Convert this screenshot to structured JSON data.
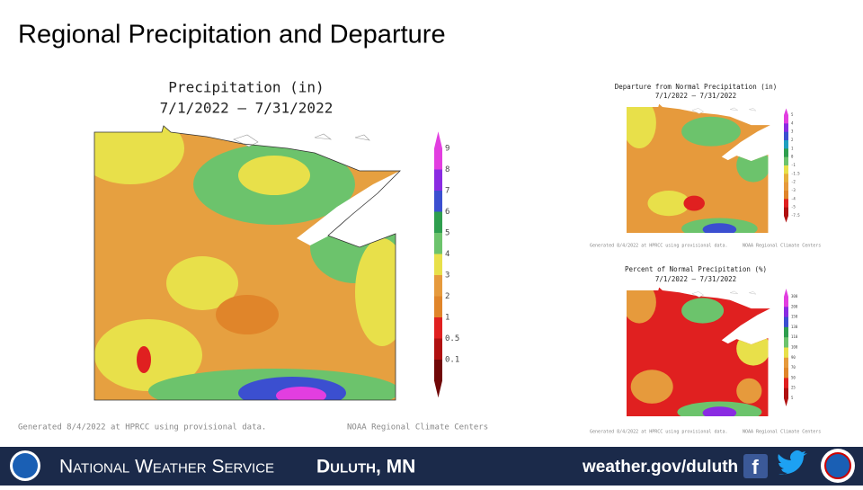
{
  "title": "Regional Precipitation and Departure",
  "main_map": {
    "title": "Precipitation (in)",
    "dates": "7/1/2022 – 7/31/2022",
    "legend": {
      "labels": [
        "9",
        "8",
        "7",
        "6",
        "5",
        "4",
        "3",
        "2",
        "1",
        "0.5",
        "0.1"
      ],
      "colors": [
        "#e23ee0",
        "#8a2be2",
        "#3b4fd0",
        "#2e9e4e",
        "#6cc36c",
        "#e8e04a",
        "#e69a3c",
        "#e0852a",
        "#e02020",
        "#b01010",
        "#700808"
      ]
    },
    "footer_left": "Generated 8/4/2022 at HPRCC using provisional data.",
    "footer_right": "NOAA Regional Climate Centers"
  },
  "departure_map": {
    "title": "Departure from Normal Precipitation (in)",
    "dates": "7/1/2022 – 7/31/2022",
    "legend": {
      "labels": [
        "5",
        "4",
        "3",
        "2",
        "1",
        "0",
        "-1",
        "-1.5",
        "-2",
        "-3",
        "-4",
        "-5",
        "-7.5"
      ],
      "colors": [
        "#e23ee0",
        "#8a2be2",
        "#3b4fd0",
        "#1fa0c0",
        "#2e9e4e",
        "#6cc36c",
        "#e8e04a",
        "#e6b03c",
        "#e69a3c",
        "#e0852a",
        "#e02020",
        "#b01010"
      ]
    },
    "footer_left": "Generated 8/4/2022 at HPRCC using provisional data.",
    "footer_right": "NOAA Regional Climate Centers"
  },
  "percent_map": {
    "title": "Percent of Normal Precipitation (%)",
    "dates": "7/1/2022 – 7/31/2022",
    "legend": {
      "labels": [
        "300",
        "200",
        "150",
        "130",
        "110",
        "100",
        "90",
        "70",
        "50",
        "25",
        "5"
      ],
      "colors": [
        "#e23ee0",
        "#8a2be2",
        "#3b4fd0",
        "#2e9e4e",
        "#6cc36c",
        "#e8e04a",
        "#e69a3c",
        "#e0852a",
        "#e02020",
        "#b01010"
      ]
    },
    "footer_left": "Generated 8/4/2022 at HPRCC using provisional data.",
    "footer_right": "NOAA Regional Climate Centers"
  },
  "banner": {
    "agency": "National Weather Service",
    "office": "Duluth, MN",
    "url": "weather.gov/duluth"
  }
}
